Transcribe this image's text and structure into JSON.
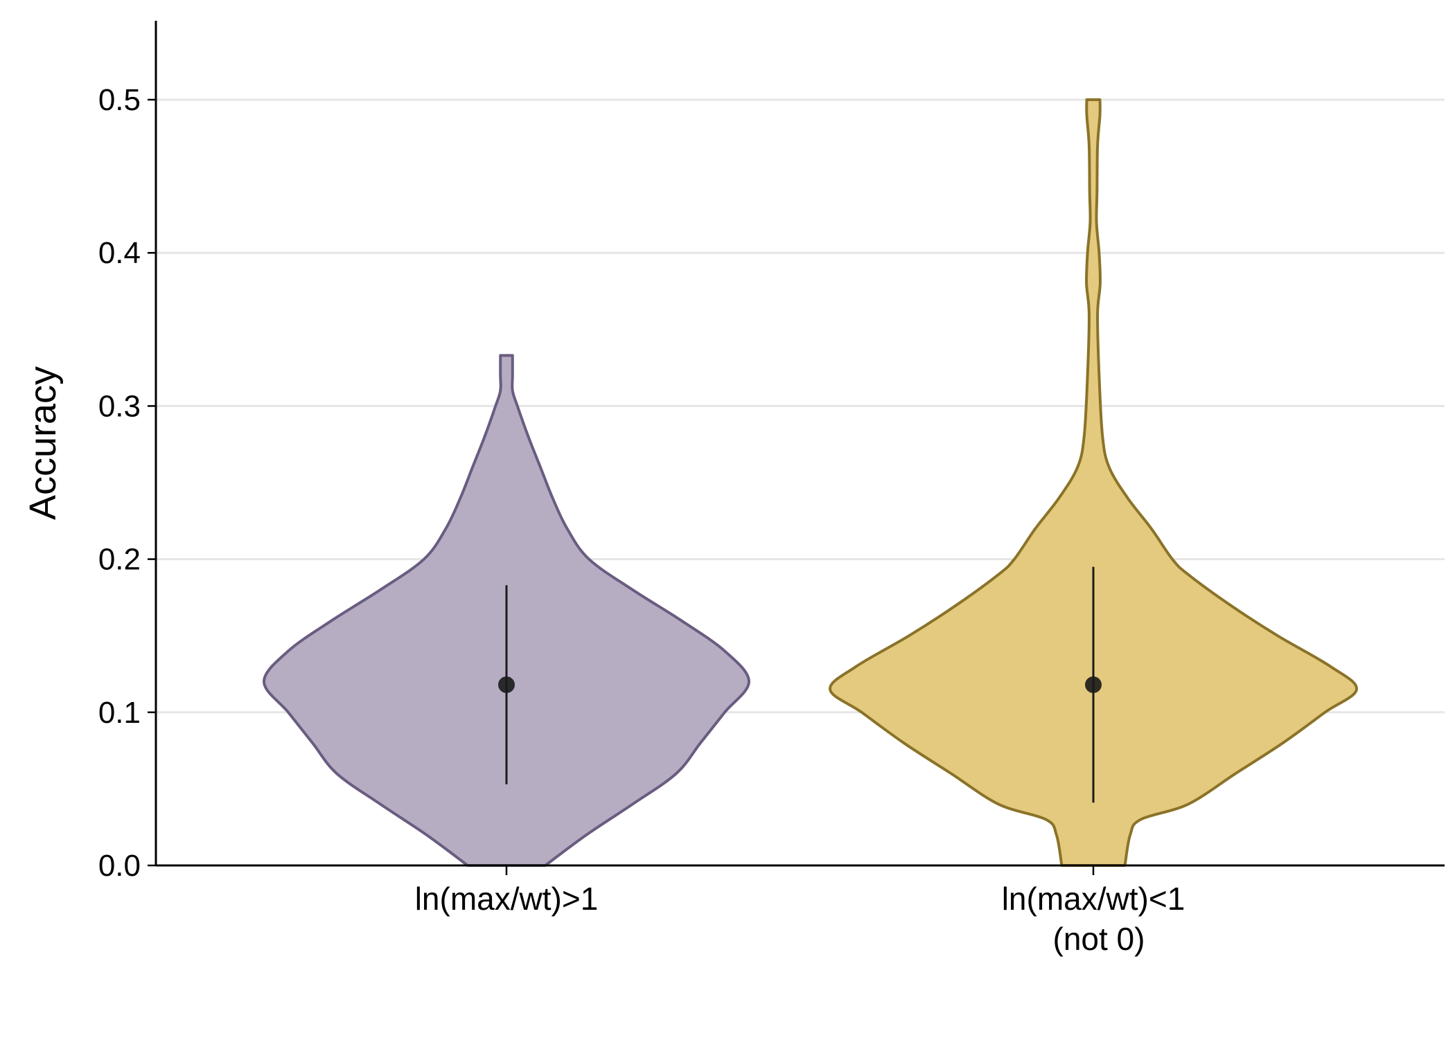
{
  "chart_data": {
    "type": "violin",
    "ylabel": "Accuracy",
    "xlabel": "",
    "ylim": [
      0,
      0.55
    ],
    "yticks": [
      "0.0",
      "0.1",
      "0.2",
      "0.3",
      "0.4",
      "0.5"
    ],
    "grid": "horizontal",
    "categories": [
      {
        "label_lines": [
          "ln(max/wt)>1"
        ],
        "color": "#b6adc3",
        "outline": "#6a5c80"
      },
      {
        "label_lines": [
          "ln(max/wt)<1",
          "(not 0)"
        ],
        "color": "#e4ca7f",
        "outline": "#8a7328"
      }
    ],
    "series": [
      {
        "median": 0.118,
        "range": [
          0.053,
          0.183
        ],
        "min": 0.0,
        "max": 0.333,
        "density_halfwidth": [
          [
            0.0,
            0.16
          ],
          [
            0.02,
            0.33
          ],
          [
            0.04,
            0.52
          ],
          [
            0.06,
            0.7
          ],
          [
            0.08,
            0.8
          ],
          [
            0.1,
            0.9
          ],
          [
            0.12,
            1.0
          ],
          [
            0.14,
            0.9
          ],
          [
            0.16,
            0.72
          ],
          [
            0.18,
            0.52
          ],
          [
            0.2,
            0.34
          ],
          [
            0.22,
            0.25
          ],
          [
            0.24,
            0.19
          ],
          [
            0.26,
            0.14
          ],
          [
            0.28,
            0.09
          ],
          [
            0.3,
            0.045
          ],
          [
            0.31,
            0.025
          ],
          [
            0.32,
            0.025
          ],
          [
            0.333,
            0.025
          ]
        ]
      },
      {
        "median": 0.118,
        "range": [
          0.041,
          0.195
        ],
        "min": 0.0,
        "max": 0.5,
        "density_halfwidth": [
          [
            0.0,
            0.12
          ],
          [
            0.02,
            0.14
          ],
          [
            0.03,
            0.18
          ],
          [
            0.04,
            0.36
          ],
          [
            0.06,
            0.54
          ],
          [
            0.08,
            0.72
          ],
          [
            0.1,
            0.88
          ],
          [
            0.115,
            1.0
          ],
          [
            0.13,
            0.9
          ],
          [
            0.15,
            0.7
          ],
          [
            0.17,
            0.52
          ],
          [
            0.19,
            0.36
          ],
          [
            0.2,
            0.3
          ],
          [
            0.22,
            0.22
          ],
          [
            0.24,
            0.13
          ],
          [
            0.26,
            0.06
          ],
          [
            0.28,
            0.035
          ],
          [
            0.32,
            0.022
          ],
          [
            0.36,
            0.016
          ],
          [
            0.38,
            0.026
          ],
          [
            0.4,
            0.022
          ],
          [
            0.42,
            0.012
          ],
          [
            0.44,
            0.014
          ],
          [
            0.47,
            0.016
          ],
          [
            0.49,
            0.025
          ],
          [
            0.5,
            0.025
          ]
        ]
      }
    ]
  }
}
